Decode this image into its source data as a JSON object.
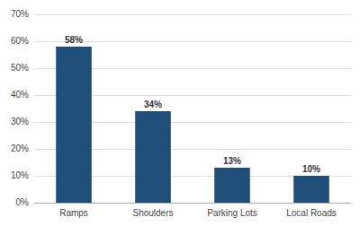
{
  "chart_data": {
    "type": "bar",
    "categories": [
      "Ramps",
      "Shoulders",
      "Parking Lots",
      "Local Roads"
    ],
    "values": [
      58,
      34,
      13,
      10
    ],
    "value_labels": [
      "58%",
      "34%",
      "13%",
      "10%"
    ],
    "color": "#1F4E79",
    "ylim": [
      0,
      70
    ],
    "yticks": [
      {
        "value": 0,
        "label": "0%"
      },
      {
        "value": 10,
        "label": "10%"
      },
      {
        "value": 20,
        "label": "20%"
      },
      {
        "value": 30,
        "label": "30%"
      },
      {
        "value": 40,
        "label": "40%"
      },
      {
        "value": 50,
        "label": "50%"
      },
      {
        "value": 60,
        "label": "60%"
      },
      {
        "value": 70,
        "label": "70%"
      }
    ],
    "grid": true,
    "data_labels": true
  }
}
